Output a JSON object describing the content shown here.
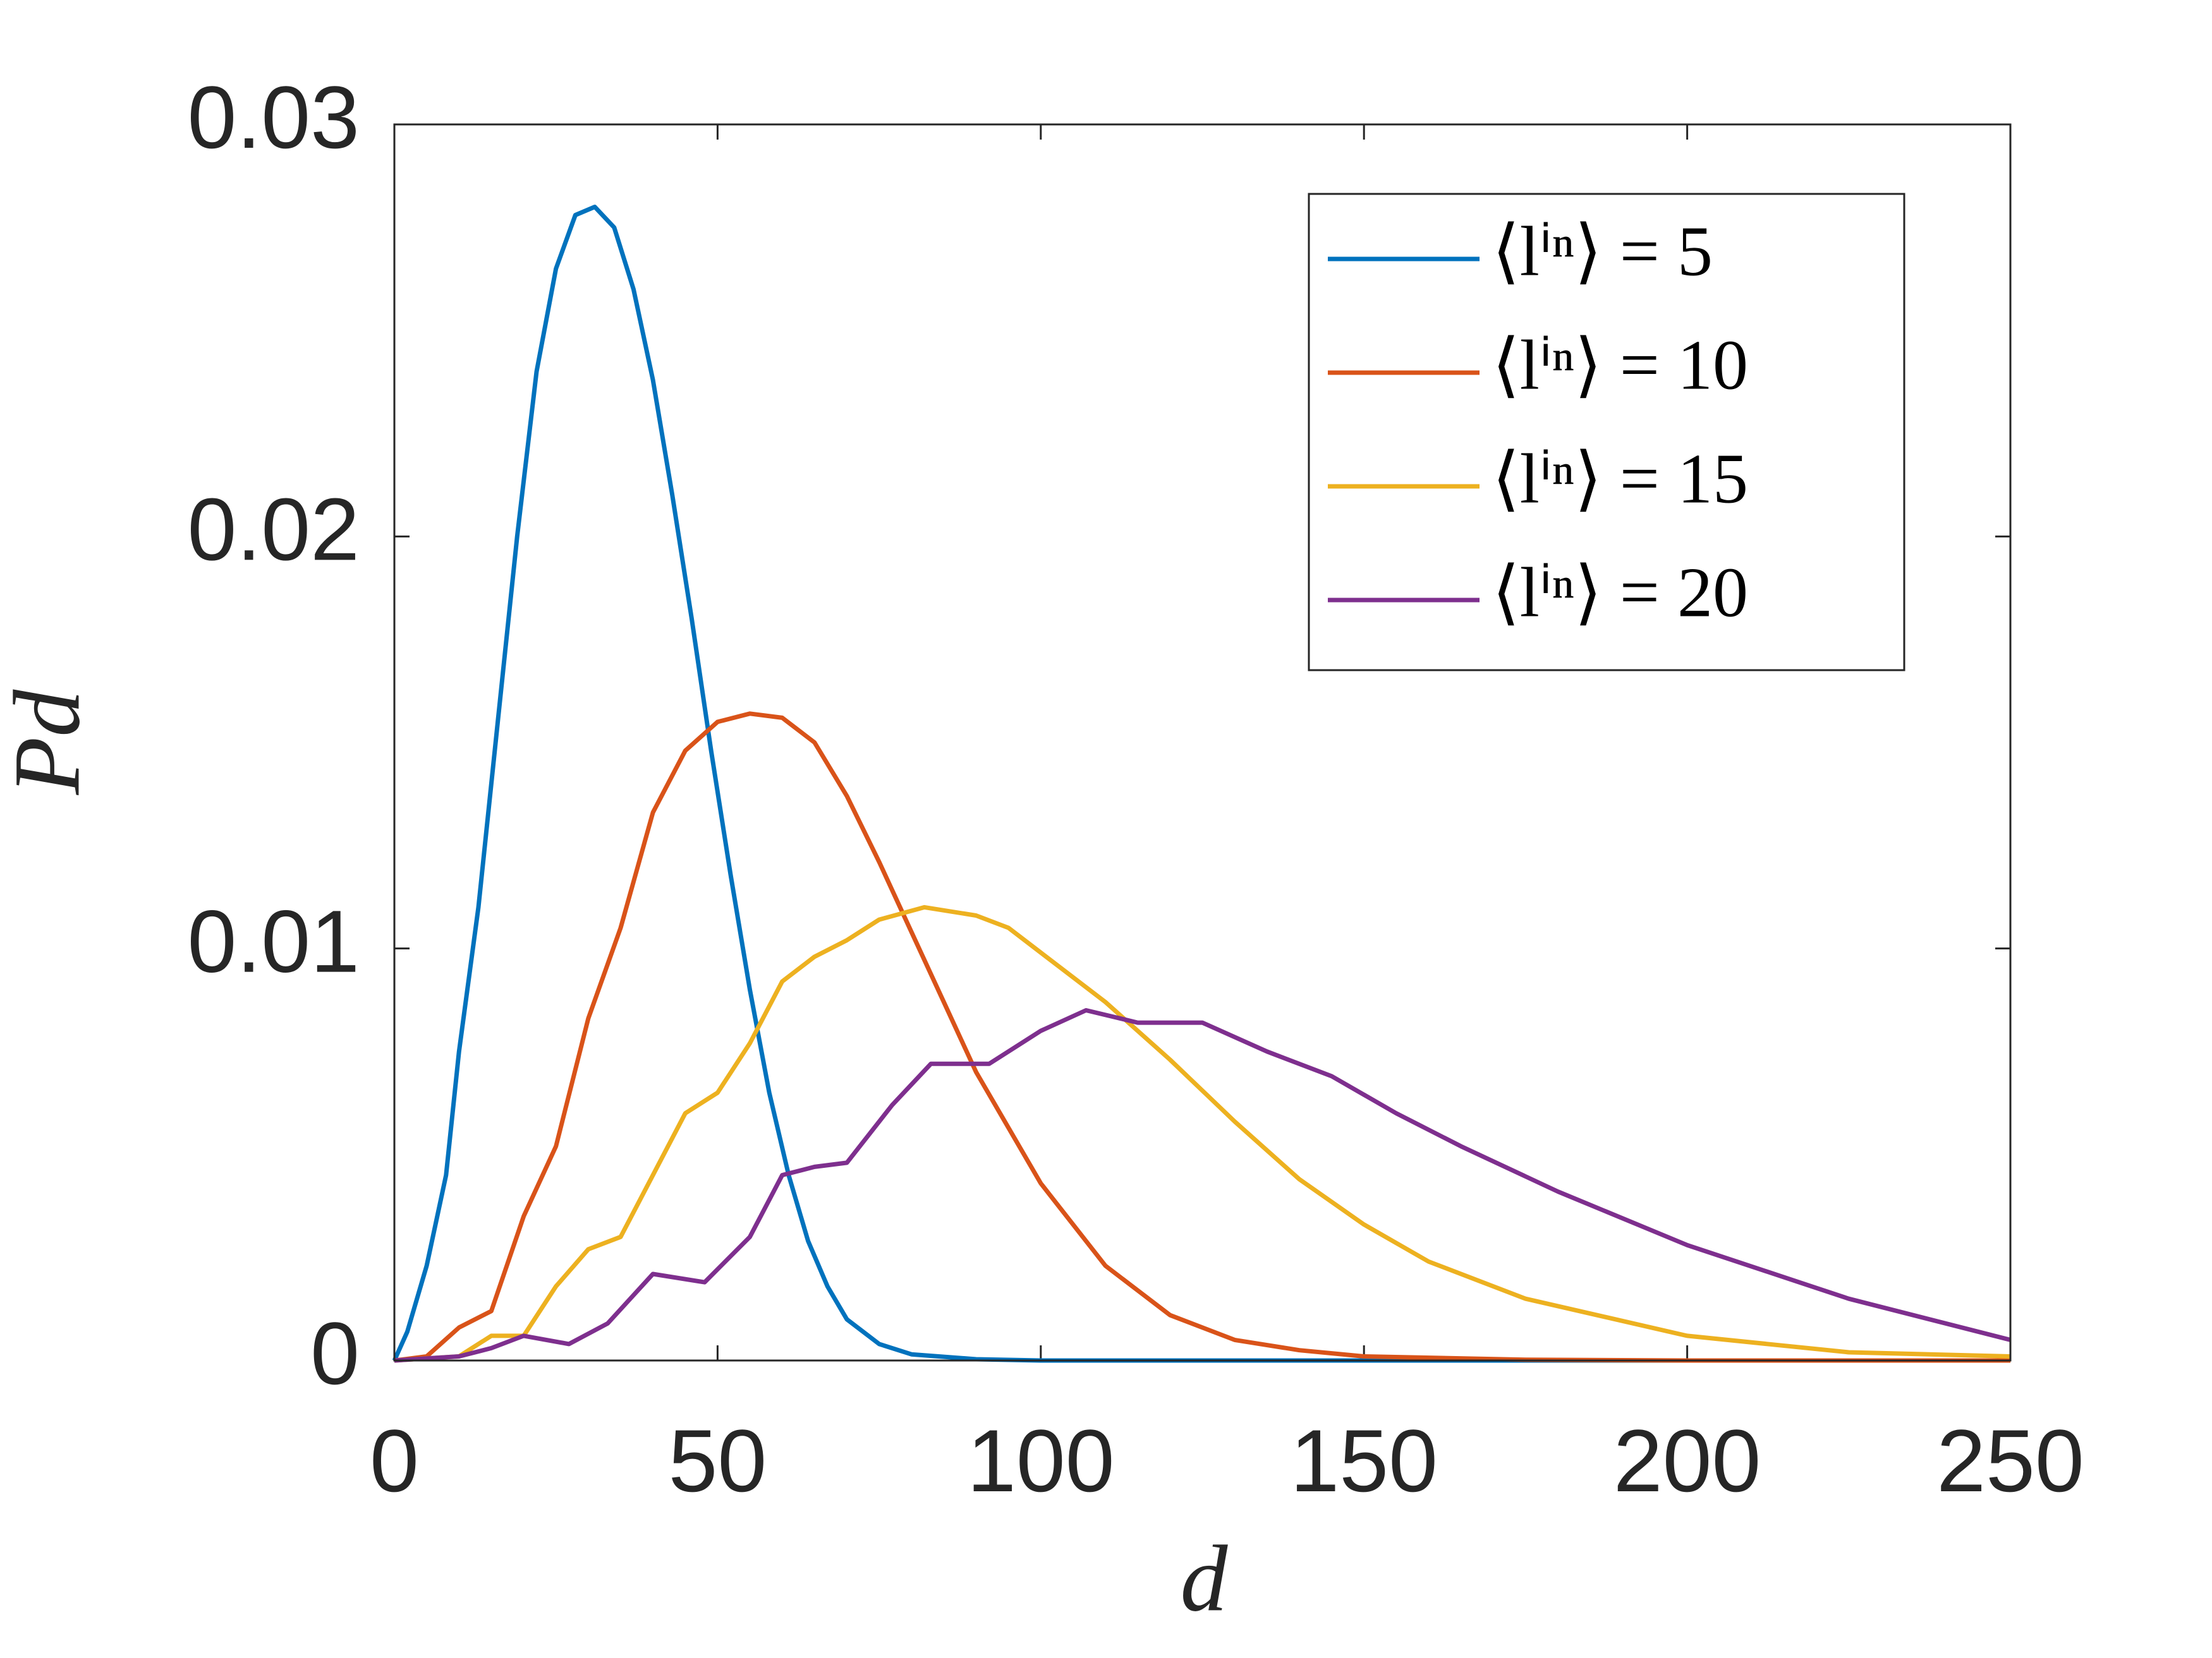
{
  "chart_data": {
    "type": "line",
    "xlabel": "d",
    "ylabel": "Pd",
    "xlim": [
      0,
      250
    ],
    "xticks": [
      0,
      50,
      100,
      150,
      200,
      250
    ],
    "ylim": [
      0,
      0.03
    ],
    "yticks": [
      0,
      0.01,
      0.02,
      0.03
    ],
    "legend": "upper right",
    "series": [
      {
        "name": "⟨lⁱⁿ⟩ = 5",
        "color": "#0072bd",
        "x": [
          0,
          2,
          5,
          8,
          10,
          13,
          16,
          19,
          22,
          25,
          28,
          31,
          34,
          37,
          40,
          43,
          46,
          49,
          52,
          55,
          58,
          61,
          64,
          67,
          70,
          75,
          80,
          90,
          100,
          150,
          250
        ],
        "values": [
          0,
          0.0007,
          0.0023,
          0.0045,
          0.0075,
          0.011,
          0.0155,
          0.02,
          0.024,
          0.0265,
          0.0278,
          0.028,
          0.0275,
          0.026,
          0.0238,
          0.021,
          0.018,
          0.0148,
          0.0118,
          0.009,
          0.0065,
          0.0045,
          0.0029,
          0.0018,
          0.001,
          0.0004,
          0.00015,
          3e-05,
          0,
          0,
          0
        ]
      },
      {
        "name": "⟨lⁱⁿ⟩ = 10",
        "color": "#d95319",
        "x": [
          0,
          5,
          10,
          15,
          20,
          25,
          30,
          35,
          40,
          45,
          50,
          55,
          60,
          65,
          70,
          75,
          80,
          85,
          90,
          100,
          110,
          120,
          130,
          140,
          150,
          175,
          200,
          250
        ],
        "values": [
          0,
          0.0001,
          0.0008,
          0.0012,
          0.0035,
          0.0052,
          0.0083,
          0.0105,
          0.0133,
          0.0148,
          0.0155,
          0.0157,
          0.0156,
          0.015,
          0.0137,
          0.0121,
          0.0104,
          0.0087,
          0.007,
          0.0043,
          0.0023,
          0.0011,
          0.0005,
          0.00025,
          0.0001,
          2e-05,
          0,
          0
        ]
      },
      {
        "name": "⟨lⁱⁿ⟩ = 15",
        "color": "#edb120",
        "x": [
          0,
          10,
          15,
          20,
          25,
          30,
          35,
          40,
          45,
          50,
          55,
          60,
          65,
          70,
          75,
          82,
          90,
          95,
          100,
          110,
          120,
          130,
          140,
          150,
          160,
          175,
          200,
          225,
          250
        ],
        "values": [
          0,
          0.0001,
          0.0006,
          0.0006,
          0.0018,
          0.0027,
          0.003,
          0.0045,
          0.006,
          0.0065,
          0.0077,
          0.0092,
          0.0098,
          0.0102,
          0.0107,
          0.011,
          0.0108,
          0.0105,
          0.0099,
          0.0087,
          0.0073,
          0.0058,
          0.0044,
          0.0033,
          0.0024,
          0.0015,
          0.0006,
          0.0002,
          0.0001
        ]
      },
      {
        "name": "⟨lⁱⁿ⟩ = 20",
        "color": "#7e2f8e",
        "x": [
          0,
          10,
          15,
          20,
          27,
          33,
          40,
          48,
          55,
          60,
          65,
          70,
          77,
          83,
          92,
          100,
          107,
          115,
          125,
          135,
          145,
          155,
          165,
          180,
          200,
          225,
          250
        ],
        "values": [
          0,
          0.0001,
          0.0003,
          0.0006,
          0.0004,
          0.0009,
          0.0021,
          0.0019,
          0.003,
          0.0045,
          0.0047,
          0.0048,
          0.0062,
          0.0072,
          0.0072,
          0.008,
          0.0085,
          0.0082,
          0.0082,
          0.0075,
          0.0069,
          0.006,
          0.0052,
          0.0041,
          0.0028,
          0.0015,
          0.0005
        ]
      }
    ]
  }
}
